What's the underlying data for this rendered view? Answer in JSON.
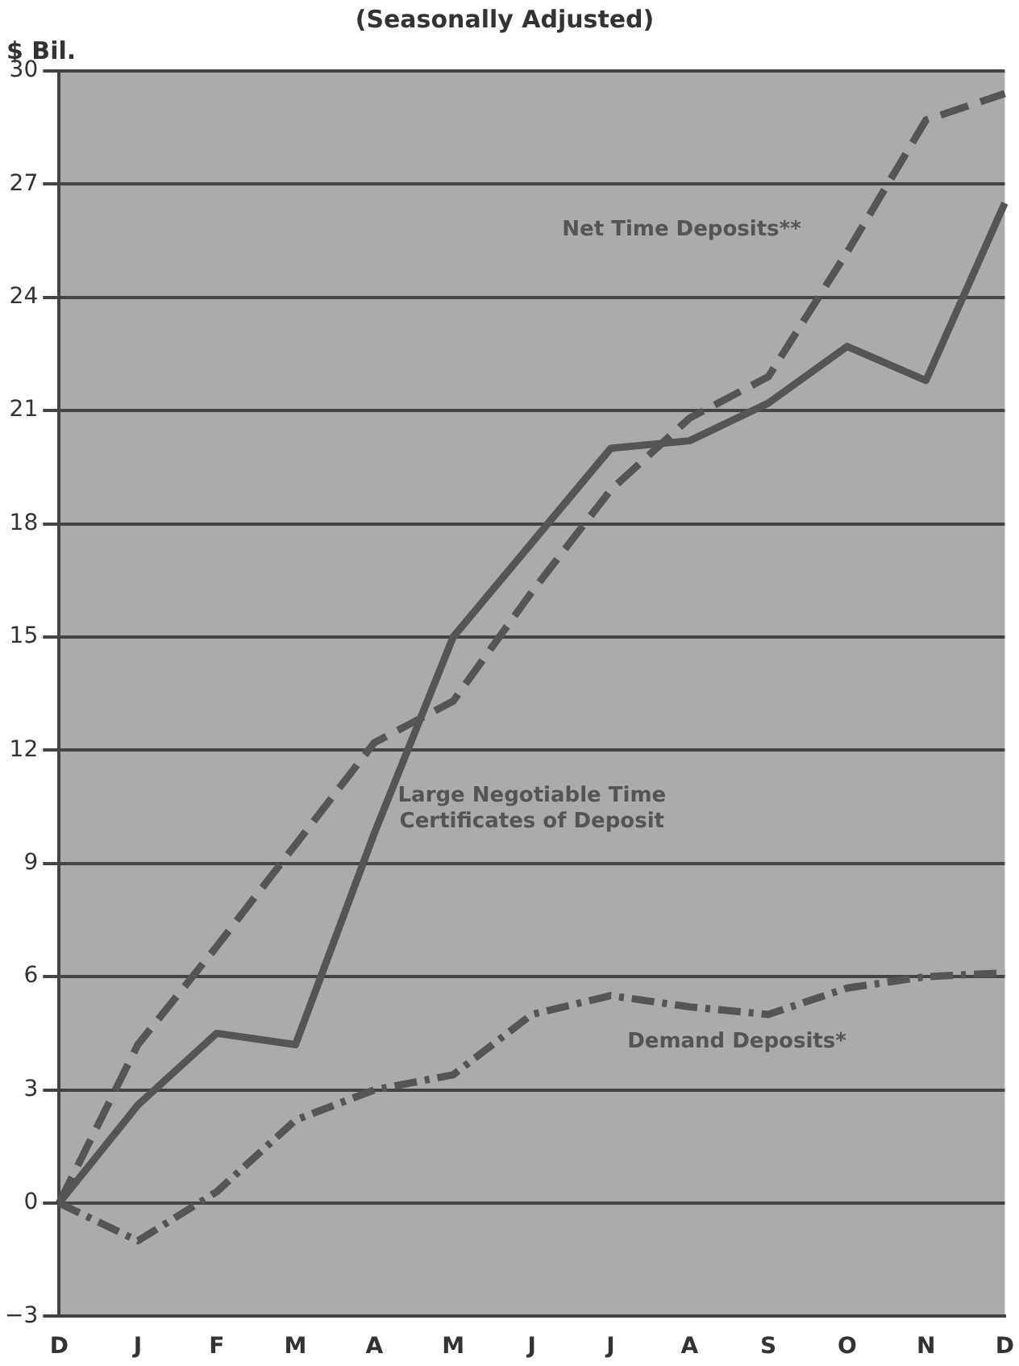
{
  "chart_data": {
    "type": "line",
    "title": "(Seasonally Adjusted)",
    "ylabel": "$ Bil.",
    "categories": [
      "D",
      "J",
      "F",
      "M",
      "A",
      "M",
      "J",
      "J",
      "A",
      "S",
      "O",
      "N",
      "D"
    ],
    "series": [
      {
        "name": "Net Time Deposits**",
        "color": "#555555",
        "line_style": "dashed",
        "values": [
          0,
          4.2,
          6.8,
          9.5,
          12.2,
          13.3,
          16.2,
          18.9,
          20.8,
          21.9,
          25.2,
          28.7,
          29.4
        ]
      },
      {
        "name": "Large Negotiable Time Certificates of Deposit",
        "color": "#555555",
        "line_style": "solid",
        "values": [
          0,
          2.6,
          4.5,
          4.2,
          9.8,
          15.0,
          17.5,
          20.0,
          20.2,
          21.2,
          22.7,
          21.8,
          26.5
        ]
      },
      {
        "name": "Demand Deposits*",
        "color": "#555555",
        "line_style": "dotted",
        "values": [
          0,
          -1.0,
          0.3,
          2.2,
          3.0,
          3.4,
          5.0,
          5.5,
          5.2,
          5.0,
          5.7,
          6.0,
          6.1
        ]
      }
    ],
    "ylim": [
      -3,
      30
    ],
    "yticks": [
      -3,
      0,
      3,
      6,
      9,
      12,
      15,
      18,
      21,
      24,
      27,
      30
    ],
    "grid": "y",
    "legend": false,
    "marker": "none"
  }
}
